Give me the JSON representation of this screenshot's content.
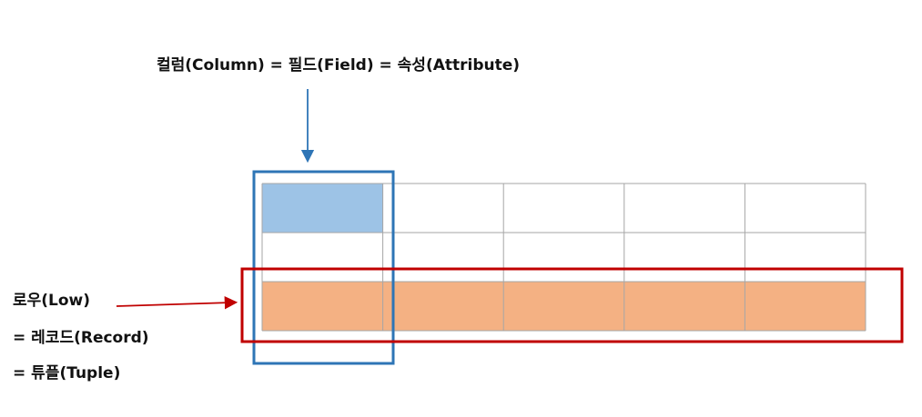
{
  "column_label": "컬럼(Column) = 필드(Field) = 속성(Attribute)",
  "row_label_lines": [
    "로우(Low)",
    "= 레코드(Record)",
    "= 튜플(Tuple)"
  ],
  "table": {
    "rows": 3,
    "columns": 5
  },
  "colors": {
    "column_highlight_border": "#2e75b6",
    "column_highlight_fill": "#9dc3e6",
    "row_highlight_border": "#c00000",
    "row_highlight_fill": "#f4b183",
    "grid_line": "#a6a6a6"
  }
}
